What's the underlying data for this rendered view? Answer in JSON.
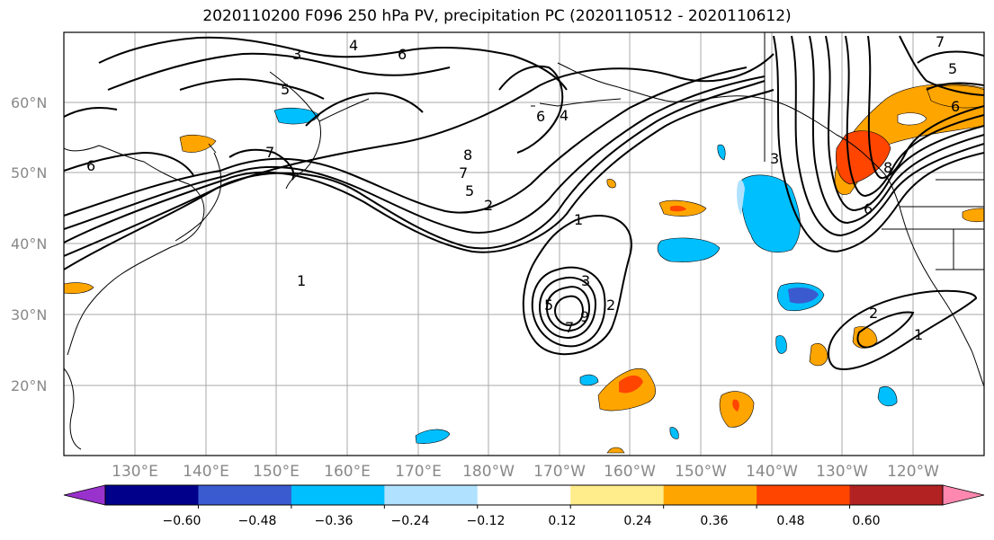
{
  "title": "2020110200 F096 250 hPa PV, precipitation PC (2020110512 - 2020110612)",
  "map": {
    "extent": {
      "lon_west": "120°E",
      "lon_east": "110°W",
      "lat_south": "10°N",
      "lat_north": "70°N"
    },
    "lat_labels": [
      "60°N",
      "50°N",
      "40°N",
      "30°N",
      "20°N"
    ],
    "lon_labels": [
      "130°E",
      "140°E",
      "150°E",
      "160°E",
      "170°E",
      "180°W",
      "170°W",
      "160°W",
      "150°W",
      "140°W",
      "130°W",
      "120°W"
    ],
    "contour_labels": [
      "3",
      "4",
      "6",
      "5",
      "7",
      "6",
      "6",
      "4",
      "8",
      "7",
      "5",
      "2",
      "1",
      "1",
      "3",
      "5",
      "7",
      "9",
      "2",
      "3",
      "8",
      "6",
      "2",
      "1",
      "5",
      "6",
      "7"
    ],
    "grid": true,
    "contour_color": "#000000"
  },
  "colorbar": {
    "tick_labels": [
      "−0.60",
      "−0.48",
      "−0.36",
      "−0.24",
      "−0.12",
      "0.12",
      "0.24",
      "0.36",
      "0.48",
      "0.60"
    ],
    "colors": [
      "#9932CC",
      "#00008B",
      "#3A5BD0",
      "#00BFFF",
      "#B0E2FF",
      "#FFFFFF",
      "#FFEC8B",
      "#FFA500",
      "#FF4500",
      "#B22222",
      "#FF88B0"
    ],
    "extend": "both"
  }
}
